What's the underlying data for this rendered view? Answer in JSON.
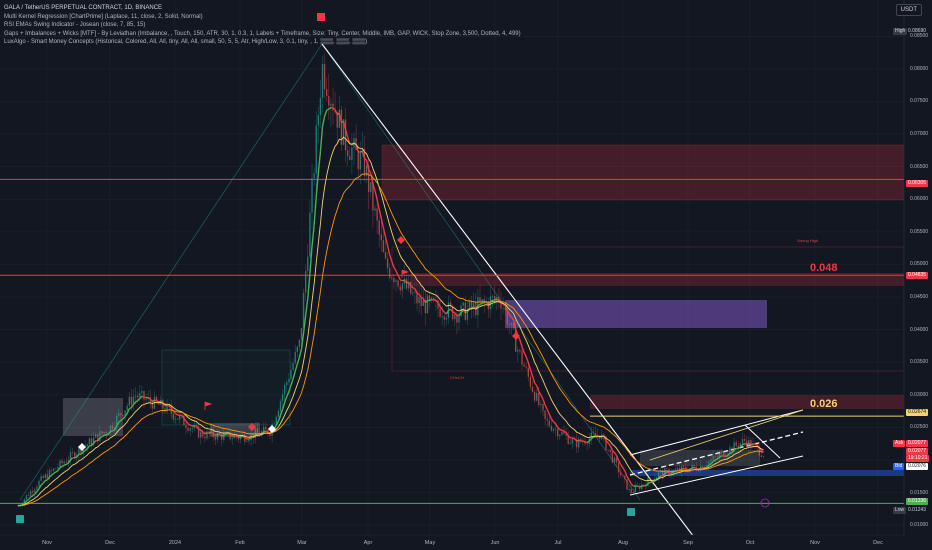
{
  "legend": {
    "symbol": "GALA / TetherUS PERPETUAL CONTRACT, 1D, BINANCE",
    "ind1": "Multi Kernel Regression [ChartPrime] (Laplace, 11, close, 2, Solid, Normal)",
    "ind2": "RSI EMAs Swing Indicator - Josean (close, 7, 85, 15)",
    "ind3": "Gaps + Imbalances + Wicks [MTF] - By Leviathan (Imbalance, , Touch, 150, ATR, 30, 1, 0.3, 1, Labels + Timeframe, Size: Tiny, Center, Middle, IMB, GAP, WICK, Stop Zone, 3,500, Dotted, 4, 499)",
    "ind4": "LuxAlgo - Smart Money Concepts (Historical, Colored, All, All, tiny, All, All, small, 50, 5, 5, Atr, High/Low, 3, 0.1, tiny, , 1, ▒▒▒, ▒▒▒, ▒▒▒)"
  },
  "currency": "USDT",
  "colors": {
    "bg": "#131722",
    "up": "#26a69a",
    "down": "#ef5350",
    "red_line": "#f23645",
    "yellow": "#f5d36c",
    "green_line": "#4caf50",
    "purple_zone": "#7e57c2"
  },
  "annotations": {
    "level_048": "0.048",
    "level_026": "0.026",
    "choch": "CHoCH",
    "strong_high": "Strong High"
  },
  "price_labels": {
    "high": "High",
    "high_val": "0.08690",
    "low": "Low",
    "low_val": "0.01243",
    "red1": "0.06305",
    "red2": "0.04835",
    "yellow": "0.02674",
    "ask": "Ask",
    "ask_val": "0.02077",
    "last_val": "0.02077",
    "countdown": "19:10:21",
    "bid": "Bid",
    "bid_val": "0.02076",
    "green": "0.01336"
  },
  "chart_data": {
    "type": "candlestick",
    "title": "GALA / TetherUS PERPETUAL CONTRACT, 1D, BINANCE",
    "x_ticks": [
      "Nov",
      "Dec",
      "2024",
      "Feb",
      "Mar",
      "Apr",
      "May",
      "Jun",
      "Jul",
      "Aug",
      "Sep",
      "Oct",
      "Nov",
      "Dec"
    ],
    "y_ticks": [
      "0.08500",
      "0.08000",
      "0.07500",
      "0.07000",
      "0.06500",
      "0.06000",
      "0.05500",
      "0.05000",
      "0.04500",
      "0.04000",
      "0.03500",
      "0.03000",
      "0.02500",
      "0.02000",
      "0.01500",
      "0.01000"
    ],
    "ylim": [
      0.0085,
      0.0875
    ],
    "high": 0.0869,
    "low": 0.01243,
    "horizontal_levels": [
      0.06305,
      0.04835,
      0.02674,
      0.01336
    ],
    "close_path": [
      {
        "x": 18,
        "y": 0.013
      },
      {
        "x": 40,
        "y": 0.0168
      },
      {
        "x": 70,
        "y": 0.0205
      },
      {
        "x": 110,
        "y": 0.025
      },
      {
        "x": 135,
        "y": 0.03
      },
      {
        "x": 165,
        "y": 0.028
      },
      {
        "x": 200,
        "y": 0.024
      },
      {
        "x": 240,
        "y": 0.0235
      },
      {
        "x": 270,
        "y": 0.0245
      },
      {
        "x": 300,
        "y": 0.038
      },
      {
        "x": 322,
        "y": 0.0805
      },
      {
        "x": 345,
        "y": 0.069
      },
      {
        "x": 365,
        "y": 0.065
      },
      {
        "x": 385,
        "y": 0.05
      },
      {
        "x": 420,
        "y": 0.044
      },
      {
        "x": 460,
        "y": 0.0425
      },
      {
        "x": 500,
        "y": 0.045
      },
      {
        "x": 520,
        "y": 0.036
      },
      {
        "x": 545,
        "y": 0.026
      },
      {
        "x": 575,
        "y": 0.0225
      },
      {
        "x": 600,
        "y": 0.024
      },
      {
        "x": 630,
        "y": 0.015
      },
      {
        "x": 660,
        "y": 0.018
      },
      {
        "x": 700,
        "y": 0.019
      },
      {
        "x": 745,
        "y": 0.023
      },
      {
        "x": 765,
        "y": 0.0208
      }
    ]
  }
}
